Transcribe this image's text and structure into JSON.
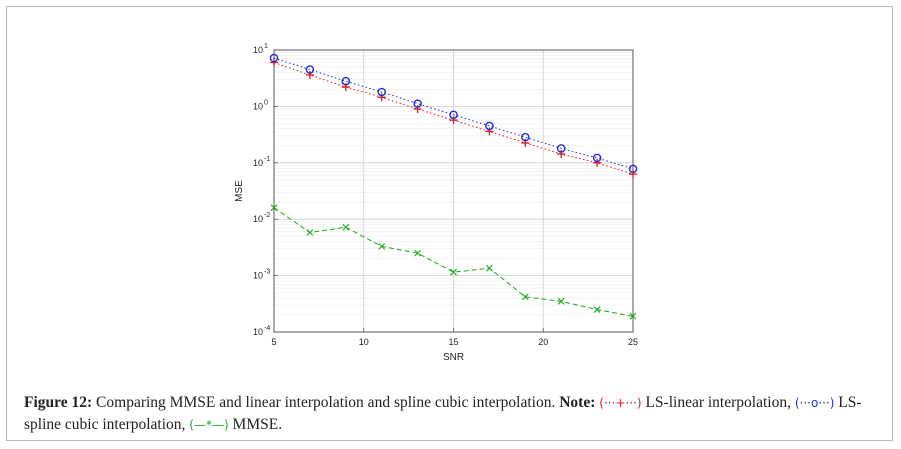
{
  "chart_data": {
    "type": "line",
    "title": "",
    "xlabel": "SNR",
    "ylabel": "MSE",
    "xscale": "linear",
    "yscale": "log",
    "xlim": [
      5,
      25
    ],
    "ylim": [
      0.0001,
      10
    ],
    "grid": true,
    "x": [
      5,
      7,
      9,
      11,
      13,
      15,
      17,
      19,
      21,
      23,
      25
    ],
    "x_ticks": [
      "5",
      "10",
      "15",
      "20",
      "25"
    ],
    "y_tick_bases": [
      "10",
      "10",
      "10",
      "10",
      "10",
      "10"
    ],
    "y_tick_exponents": [
      "1",
      "0",
      "-1",
      "-2",
      "-3",
      "-4"
    ],
    "series": [
      {
        "name": "LS-linear interpolation",
        "color": "#e8141e",
        "marker": "plus",
        "linestyle": "dotted",
        "values": [
          6.0,
          3.6,
          2.2,
          1.45,
          0.9,
          0.57,
          0.36,
          0.225,
          0.143,
          0.1,
          0.063
        ]
      },
      {
        "name": "LS-spline cubic interpolation",
        "color": "#1f2fd0",
        "marker": "circle",
        "linestyle": "dotted",
        "values": [
          7.2,
          4.5,
          2.8,
          1.8,
          1.12,
          0.71,
          0.45,
          0.285,
          0.18,
          0.122,
          0.078
        ]
      },
      {
        "name": "MMSE",
        "color": "#1da81d",
        "marker": "x",
        "linestyle": "dashed",
        "values": [
          0.016,
          0.0058,
          0.0072,
          0.0033,
          0.0025,
          0.00115,
          0.00135,
          0.00042,
          0.00035,
          0.00025,
          0.00019
        ]
      }
    ]
  },
  "caption": {
    "label": "Figure 12:",
    "text1": " Comparing MMSE and linear interpolation and spline cubic interpolation. ",
    "note_label": "Note:",
    "sym_linear": "(···+···)",
    "text2": " LS-linear interpolation, ",
    "sym_spline": "(···o···)",
    "text3": " LS-spline cubic interpolation, ",
    "sym_mmse": "(—*—)",
    "text4": " MMSE."
  }
}
